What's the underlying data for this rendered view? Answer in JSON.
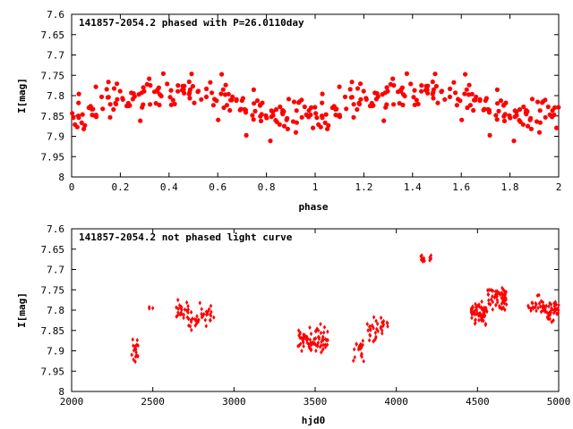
{
  "chart_data": [
    {
      "type": "scatter",
      "title": "141857-2054.2 phased with P=26.0110day",
      "xlabel": "phase",
      "ylabel": "I[mag]",
      "xlim": [
        0,
        2
      ],
      "ylim": [
        7.6,
        8
      ],
      "y_inverted": true,
      "grid": false,
      "marker": "star",
      "color": "#ff0000",
      "xticks": [
        "0",
        "0.2",
        "0.4",
        "0.6",
        "0.8",
        "1",
        "1.2",
        "1.4",
        "1.6",
        "1.8",
        "2"
      ],
      "yticks": [
        "7.6",
        "7.65",
        "7.7",
        "7.75",
        "7.8",
        "7.85",
        "7.9",
        "7.95",
        "8"
      ],
      "seed": 7,
      "points": []
    },
    {
      "type": "scatter",
      "title": "141857-2054.2 not phased light curve",
      "xlabel": "hjd0",
      "ylabel": "I[mag]",
      "xlim": [
        2000,
        5000
      ],
      "ylim": [
        7.6,
        8
      ],
      "y_inverted": true,
      "grid": false,
      "marker": "diamond",
      "color": "#ff0000",
      "xticks": [
        "2000",
        "2500",
        "3000",
        "3500",
        "4000",
        "4500",
        "5000"
      ],
      "yticks": [
        "7.6",
        "7.65",
        "7.7",
        "7.75",
        "7.8",
        "7.85",
        "7.9",
        "7.95",
        "8"
      ],
      "seed": 13,
      "clusters": [
        {
          "x_range": [
            2370,
            2410
          ],
          "y_mean": 7.9,
          "y_spread": 0.04,
          "n": 18
        },
        {
          "x_range": [
            2460,
            2510
          ],
          "y_mean": 7.8,
          "y_spread": 0.04,
          "n": 3
        },
        {
          "x_range": [
            2640,
            2720
          ],
          "y_mean": 7.8,
          "y_spread": 0.04,
          "n": 22
        },
        {
          "x_range": [
            2720,
            2780
          ],
          "y_mean": 7.83,
          "y_spread": 0.035,
          "n": 16
        },
        {
          "x_range": [
            2780,
            2880
          ],
          "y_mean": 7.81,
          "y_spread": 0.04,
          "n": 22
        },
        {
          "x_range": [
            3390,
            3480
          ],
          "y_mean": 7.88,
          "y_spread": 0.05,
          "n": 40
        },
        {
          "x_range": [
            3480,
            3580
          ],
          "y_mean": 7.87,
          "y_spread": 0.05,
          "n": 40
        },
        {
          "x_range": [
            3730,
            3800
          ],
          "y_mean": 7.9,
          "y_spread": 0.045,
          "n": 20
        },
        {
          "x_range": [
            3800,
            3880
          ],
          "y_mean": 7.85,
          "y_spread": 0.05,
          "n": 20
        },
        {
          "x_range": [
            3880,
            3950
          ],
          "y_mean": 7.84,
          "y_spread": 0.05,
          "n": 14
        },
        {
          "x_range": [
            4150,
            4180
          ],
          "y_mean": 7.67,
          "y_spread": 0.02,
          "n": 8
        },
        {
          "x_range": [
            4200,
            4230
          ],
          "y_mean": 7.67,
          "y_spread": 0.02,
          "n": 5
        },
        {
          "x_range": [
            4460,
            4560
          ],
          "y_mean": 7.81,
          "y_spread": 0.045,
          "n": 60
        },
        {
          "x_range": [
            4560,
            4680
          ],
          "y_mean": 7.77,
          "y_spread": 0.045,
          "n": 60
        },
        {
          "x_range": [
            4810,
            4910
          ],
          "y_mean": 7.79,
          "y_spread": 0.035,
          "n": 30
        },
        {
          "x_range": [
            4910,
            5000
          ],
          "y_mean": 7.8,
          "y_spread": 0.045,
          "n": 40
        }
      ]
    }
  ]
}
